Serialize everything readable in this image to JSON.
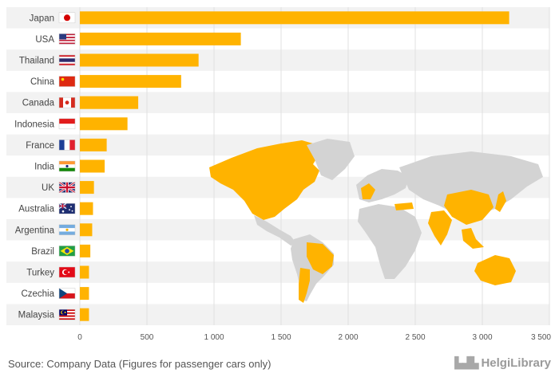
{
  "chart_data": {
    "type": "bar",
    "orientation": "horizontal",
    "title": "",
    "xlabel": "",
    "ylabel": "",
    "xlim": [
      0,
      3500
    ],
    "x_ticks": [
      0,
      500,
      1000,
      1500,
      2000,
      2500,
      3000,
      3500
    ],
    "x_tick_labels": [
      "0",
      "500",
      "1 000",
      "1 500",
      "2 000",
      "2 500",
      "3 000",
      "3 500"
    ],
    "categories": [
      "Japan",
      "USA",
      "Thailand",
      "China",
      "Canada",
      "Indonesia",
      "France",
      "India",
      "UK",
      "Australia",
      "Argentina",
      "Brazil",
      "Turkey",
      "Czechia",
      "Malaysia"
    ],
    "values": [
      3200,
      1200,
      885,
      755,
      435,
      355,
      200,
      185,
      105,
      98,
      92,
      78,
      68,
      68,
      68
    ],
    "bar_color": "#ffb300",
    "grid": true,
    "background_map": "world map with producing countries highlighted in orange"
  },
  "colors": {
    "bar": "#ffb300",
    "map_land": "#d3d3d3",
    "map_highlight": "#ffb300",
    "band": "#f2f2f2",
    "grid": "#e0e0e0"
  },
  "footer": {
    "source": "Source: Company Data (Figures for passenger cars only)",
    "brand": "HelgiLibrary"
  }
}
